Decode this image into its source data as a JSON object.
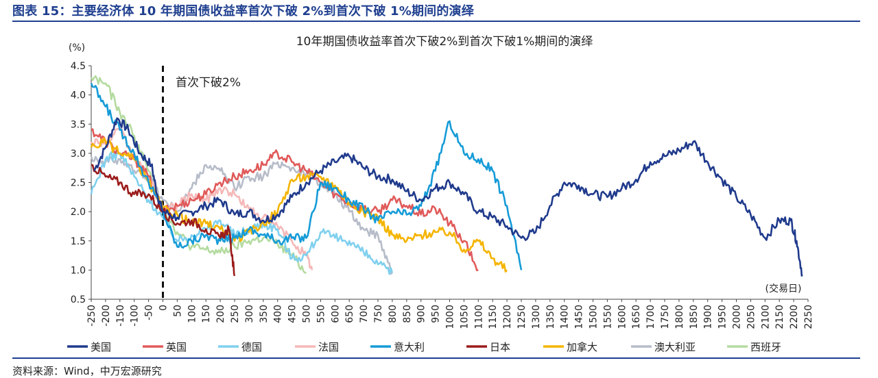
{
  "figure": {
    "title": "图表 15：主要经济体 10 年期国债收益率首次下破 2%到首次下破 1%期间的演绎",
    "source": "资料来源：Wind，中万宏源研究",
    "accent_color": "#1f3f8f"
  },
  "chart_data": {
    "type": "line",
    "title": "10年期国债收益率首次下破2%到首次下破1%期间的演绎",
    "xlabel": "(交易日)",
    "ylabel": "(%)",
    "xlim": [
      -250,
      2250
    ],
    "ylim": [
      0.5,
      4.5
    ],
    "x_ticks": [
      "-250",
      "-200",
      "-150",
      "-100",
      "-50",
      "0",
      "50",
      "100",
      "150",
      "200",
      "250",
      "300",
      "350",
      "400",
      "450",
      "500",
      "550",
      "600",
      "650",
      "700",
      "750",
      "800",
      "850",
      "900",
      "950",
      "1000",
      "1050",
      "1100",
      "1150",
      "1200",
      "1250",
      "1300",
      "1350",
      "1400",
      "1450",
      "1500",
      "1550",
      "1600",
      "1650",
      "1700",
      "1750",
      "1800",
      "1850",
      "1900",
      "1950",
      "2000",
      "2050",
      "2100",
      "2150",
      "2200",
      "2250"
    ],
    "y_ticks": [
      "0.5",
      "1.0",
      "1.5",
      "2.0",
      "2.5",
      "3.0",
      "3.5",
      "4.0",
      "4.5"
    ],
    "annotation": {
      "x": 0,
      "label": "首次下破2%"
    },
    "grid": false,
    "legend_position": "bottom",
    "series": [
      {
        "name": "美国",
        "color": "#1f3a8c",
        "x": [
          -240,
          -200,
          -160,
          -120,
          -80,
          -40,
          -20,
          0,
          50,
          100,
          150,
          200,
          250,
          300,
          350,
          400,
          450,
          500,
          550,
          600,
          650,
          700,
          750,
          800,
          850,
          900,
          950,
          1000,
          1050,
          1100,
          1150,
          1200,
          1250,
          1300,
          1350,
          1400,
          1450,
          1500,
          1550,
          1600,
          1650,
          1700,
          1750,
          1800,
          1850,
          1900,
          1950,
          2000,
          2050,
          2100,
          2150,
          2190,
          2210,
          2230
        ],
        "y": [
          2.7,
          3.1,
          3.6,
          3.4,
          3.0,
          2.8,
          2.3,
          2.0,
          1.9,
          2.0,
          2.1,
          2.2,
          1.95,
          2.0,
          1.85,
          1.95,
          2.25,
          2.5,
          2.7,
          2.85,
          2.95,
          2.75,
          2.6,
          2.55,
          2.35,
          2.2,
          2.4,
          2.5,
          2.3,
          2.0,
          1.9,
          1.75,
          1.55,
          1.65,
          2.1,
          2.5,
          2.45,
          2.3,
          2.25,
          2.4,
          2.55,
          2.85,
          2.95,
          3.05,
          3.2,
          2.85,
          2.55,
          2.25,
          1.95,
          1.55,
          1.85,
          1.85,
          1.5,
          0.92
        ]
      },
      {
        "name": "英国",
        "color": "#e05a5a",
        "x": [
          -250,
          -200,
          -150,
          -100,
          -50,
          0,
          50,
          100,
          150,
          200,
          250,
          300,
          350,
          400,
          450,
          500,
          550,
          600,
          650,
          700,
          750,
          800,
          850,
          900,
          950,
          1000,
          1050,
          1100
        ],
        "y": [
          3.4,
          3.2,
          3.0,
          2.9,
          2.6,
          2.0,
          2.1,
          2.2,
          2.3,
          2.5,
          2.6,
          2.7,
          2.8,
          3.0,
          2.85,
          2.7,
          2.5,
          2.3,
          2.15,
          2.05,
          2.0,
          2.2,
          2.1,
          1.95,
          2.05,
          1.8,
          1.5,
          1.0
        ]
      },
      {
        "name": "德国",
        "color": "#7fd0ee",
        "x": [
          -250,
          -200,
          -150,
          -100,
          -50,
          0,
          50,
          100,
          150,
          200,
          250,
          300,
          350,
          400,
          450,
          500,
          550,
          600,
          650,
          700,
          750,
          800
        ],
        "y": [
          2.3,
          2.9,
          3.0,
          2.6,
          2.2,
          1.9,
          1.5,
          1.6,
          1.7,
          1.85,
          1.6,
          1.7,
          1.8,
          1.7,
          1.2,
          1.25,
          1.65,
          1.55,
          1.5,
          1.3,
          1.1,
          0.95
        ]
      },
      {
        "name": "法国",
        "color": "#f5b8b8",
        "x": [
          -250,
          -200,
          -150,
          -100,
          -50,
          0,
          50,
          100,
          150,
          200,
          250,
          300,
          350,
          400,
          450,
          500,
          520
        ],
        "y": [
          3.2,
          3.2,
          3.4,
          2.9,
          2.6,
          2.0,
          2.1,
          2.3,
          2.2,
          2.4,
          2.3,
          2.05,
          1.9,
          1.75,
          1.5,
          1.25,
          1.0
        ]
      },
      {
        "name": "意大利",
        "color": "#159bd7",
        "x": [
          -250,
          -200,
          -150,
          -100,
          -50,
          0,
          50,
          100,
          150,
          200,
          250,
          300,
          350,
          400,
          450,
          500,
          550,
          600,
          650,
          700,
          750,
          800,
          850,
          900,
          950,
          1000,
          1050,
          1100,
          1150,
          1200,
          1250
        ],
        "y": [
          4.2,
          3.8,
          3.4,
          3.0,
          2.5,
          2.0,
          1.4,
          1.5,
          1.6,
          1.5,
          1.55,
          1.7,
          1.6,
          1.5,
          1.55,
          1.55,
          2.5,
          2.4,
          2.2,
          2.05,
          1.85,
          2.0,
          1.95,
          2.1,
          2.7,
          3.55,
          3.0,
          2.9,
          2.7,
          2.1,
          1.0
        ]
      },
      {
        "name": "日本",
        "color": "#9b1b1b",
        "x": [
          -250,
          -200,
          -150,
          -100,
          -50,
          0,
          50,
          100,
          150,
          200,
          230,
          250
        ],
        "y": [
          2.8,
          2.6,
          2.5,
          2.3,
          2.3,
          2.0,
          1.8,
          1.85,
          1.7,
          1.55,
          1.7,
          0.9
        ]
      },
      {
        "name": "加拿大",
        "color": "#f4b400",
        "x": [
          -250,
          -200,
          -150,
          -100,
          -50,
          0,
          50,
          100,
          150,
          200,
          250,
          300,
          350,
          400,
          450,
          500,
          550,
          600,
          650,
          700,
          750,
          800,
          850,
          900,
          950,
          1000,
          1050,
          1100,
          1150,
          1200
        ],
        "y": [
          3.1,
          3.2,
          3.0,
          2.9,
          2.5,
          2.05,
          1.95,
          1.8,
          1.8,
          1.7,
          1.5,
          1.65,
          1.8,
          2.0,
          2.55,
          2.6,
          2.6,
          2.45,
          2.15,
          2.0,
          1.9,
          1.6,
          1.5,
          1.6,
          1.65,
          1.65,
          1.35,
          1.5,
          1.2,
          1.0
        ]
      },
      {
        "name": "澳大利亚",
        "color": "#b7bcc9",
        "x": [
          -250,
          -200,
          -150,
          -100,
          -50,
          0,
          50,
          100,
          150,
          200,
          250,
          300,
          350,
          400,
          450,
          500,
          550,
          600,
          650,
          700,
          750,
          800
        ],
        "y": [
          2.95,
          2.85,
          2.9,
          2.7,
          2.6,
          2.2,
          2.0,
          2.4,
          2.8,
          2.7,
          2.4,
          2.6,
          2.6,
          2.85,
          2.75,
          2.65,
          2.5,
          2.3,
          2.0,
          1.7,
          1.6,
          0.95
        ]
      },
      {
        "name": "西班牙",
        "color": "#b4dba0",
        "x": [
          -250,
          -200,
          -150,
          -100,
          -50,
          0,
          50,
          100,
          150,
          200,
          250,
          300,
          350,
          400,
          450,
          500
        ],
        "y": [
          4.3,
          4.2,
          3.7,
          3.3,
          2.7,
          2.05,
          1.65,
          1.4,
          1.35,
          1.3,
          1.4,
          1.5,
          1.55,
          1.45,
          1.25,
          0.95
        ]
      }
    ]
  }
}
